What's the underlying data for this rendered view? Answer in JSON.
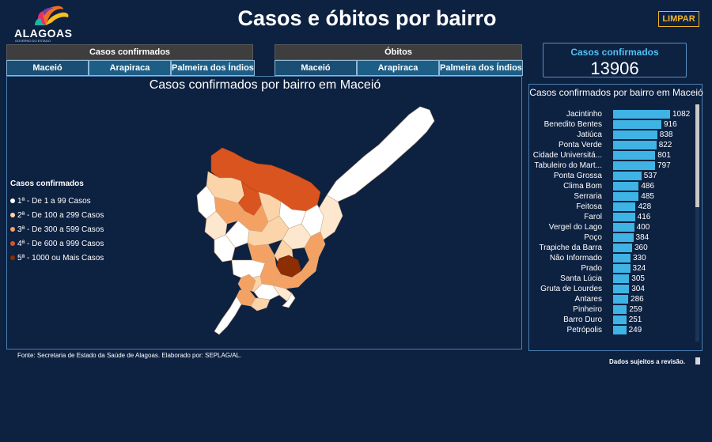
{
  "header": {
    "logo_text": "ALAGOAS",
    "logo_subtext": "GOVERNO DO ESTADO",
    "title": "Casos e óbitos por bairro",
    "clear_label": "LIMPAR"
  },
  "tabs_cases": {
    "header": "Casos confirmados",
    "items": [
      "Maceió",
      "Arapiraca",
      "Palmeira dos Índios"
    ]
  },
  "tabs_deaths": {
    "header": "Óbitos",
    "items": [
      "Maceió",
      "Arapiraca",
      "Palmeira dos Índios"
    ]
  },
  "kpi": {
    "label": "Casos confirmados",
    "value": "13906"
  },
  "map": {
    "title": "Casos confirmados por bairro em Maceió",
    "legend_title": "Casos confirmados",
    "legend": [
      {
        "label": "1ª - De 1 a 99 Casos",
        "color": "#ffffff"
      },
      {
        "label": "2ª - De 100 a 299 Casos",
        "color": "#fbd4a9"
      },
      {
        "label": "3ª - De 300 a 599 Casos",
        "color": "#f4a263"
      },
      {
        "label": "4ª - De 600 a 999 Casos",
        "color": "#d9541e"
      },
      {
        "label": "5ª - 1000 ou Mais Casos",
        "color": "#8c2d04"
      }
    ]
  },
  "chart_data": {
    "type": "bar",
    "title": "Casos confirmados por bairro em Maceió",
    "categories": [
      "Jacintinho",
      "Benedito Bentes",
      "Jatiúca",
      "Ponta Verde",
      "Cidade Universitá...",
      "Tabuleiro do Mart...",
      "Ponta Grossa",
      "Clima Bom",
      "Serraria",
      "Feitosa",
      "Farol",
      "Vergel do Lago",
      "Poço",
      "Trapiche da Barra",
      "Não Informado",
      "Prado",
      "Santa Lúcia",
      "Gruta de Lourdes",
      "Antares",
      "Pinheiro",
      "Barro Duro",
      "Petrópolis"
    ],
    "values": [
      1082,
      916,
      838,
      822,
      801,
      797,
      537,
      486,
      485,
      428,
      416,
      400,
      384,
      360,
      330,
      324,
      305,
      304,
      286,
      259,
      251,
      249
    ],
    "value_labels": [
      "1082",
      "916",
      "838",
      "822",
      "801",
      "797",
      "537",
      "486",
      "485",
      "428",
      "416",
      "400",
      "384",
      "360",
      "330",
      "324",
      "305",
      "304",
      "286",
      "259",
      "251",
      "249"
    ],
    "color": "#3fb3e4"
  },
  "footer": {
    "source": "Fonte: Secretaria de Estado da Saúde de Alagoas. Elaborado por: SEPLAG/AL.",
    "note": "Dados sujeitos a revisão."
  }
}
